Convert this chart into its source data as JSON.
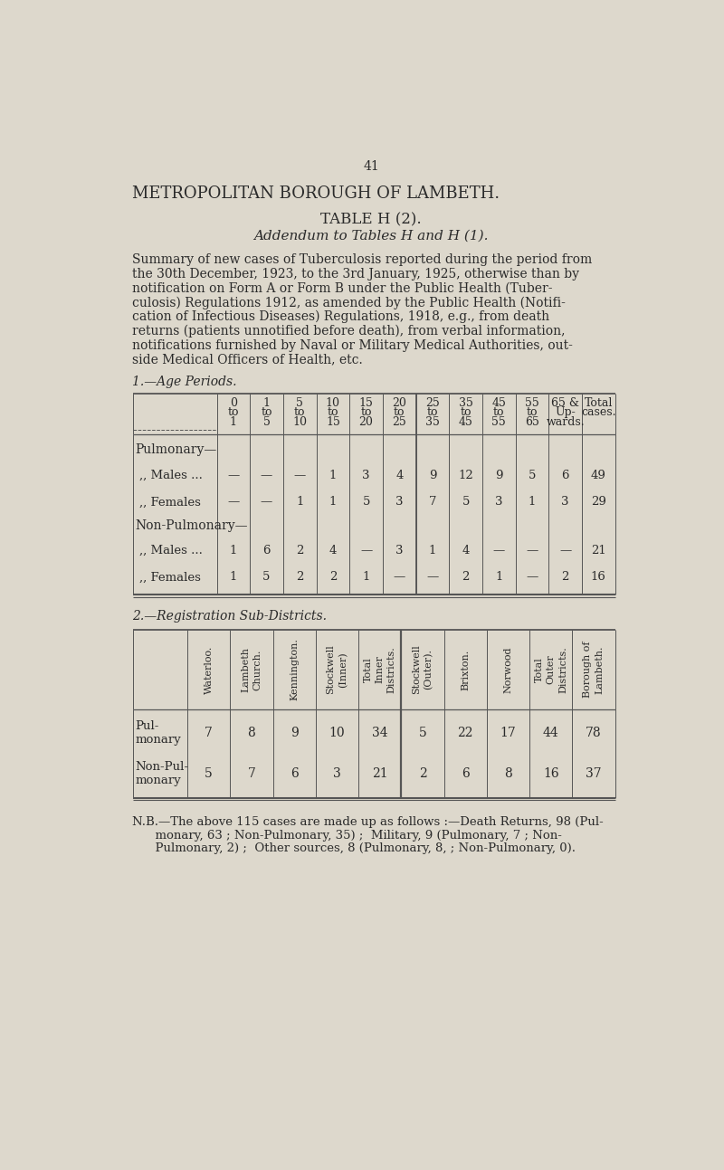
{
  "page_number": "41",
  "title1": "METROPOLITAN BOROUGH OF LAMBETH.",
  "title2": "TABLE H (2).",
  "title3": "Addendum to Tables H and H (1).",
  "body_lines": [
    "Summary of new cases of Tuberculosis reported during the period from",
    "the 30th December, 1923, to the 3rd January, 1925, otherwise than by",
    "notification on Form A or Form B under the Public Health (Tuber-",
    "culosis) Regulations 1912, as amended by the Public Health (Notifi-",
    "cation of Infectious Diseases) Regulations, 1918, e.g., from death",
    "returns (patients unnotified before death), from verbal information,",
    "notifications furnished by Naval or Military Medical Authorities, out-",
    "side Medical Officers of Health, etc."
  ],
  "section1_label": "1.—Age Periods.",
  "age_col_headers_line1": [
    "0",
    "1",
    "5",
    "10",
    "15",
    "20",
    "25",
    "35",
    "45",
    "55",
    "65 &",
    "Total"
  ],
  "age_col_headers_line2": [
    "to",
    "to",
    "to",
    "to",
    "to",
    "to",
    "to",
    "to",
    "to",
    "to",
    "Up-",
    "cases."
  ],
  "age_col_headers_line3": [
    "1",
    "5",
    "10",
    "15",
    "20",
    "25",
    "35",
    "45",
    "55",
    "65",
    "wards.",
    ""
  ],
  "age_row_labels": [
    "Pulmonary—",
    ",, Males ...",
    ",, Females",
    "Non-Pulmonary—",
    ",, Males ...",
    ",, Females"
  ],
  "age_row_values": [
    null,
    [
      "—",
      "—",
      "—",
      "1",
      "3",
      "4",
      "9",
      "12",
      "9",
      "5",
      "6",
      "49"
    ],
    [
      "—",
      "—",
      "1",
      "1",
      "5",
      "3",
      "7",
      "5",
      "3",
      "1",
      "3",
      "29"
    ],
    null,
    [
      "1",
      "6",
      "2",
      "4",
      "—",
      "3",
      "1",
      "4",
      "—",
      "—",
      "—",
      "21"
    ],
    [
      "1",
      "5",
      "2",
      "2",
      "1",
      "—",
      "—",
      "2",
      "1",
      "—",
      "2",
      "16"
    ]
  ],
  "section2_label": "2.—Registration Sub-Districts.",
  "dist_col_headers": [
    "Waterloo.",
    "Lambeth\nChurch.",
    "Kennington.",
    "Stockwell\n(Inner)",
    "Total\nInner\nDistricts.",
    "Stockwell\n(Outer).",
    "Brixton.",
    "Norwood",
    "Total\nOuter\nDistricts.",
    "Borough of\nLambeth."
  ],
  "dist_row_labels": [
    "Pul-\nmonary",
    "Non-Pul-\nmonary"
  ],
  "dist_row_values": [
    [
      "7",
      "8",
      "9",
      "10",
      "34",
      "5",
      "22",
      "17",
      "44",
      "78"
    ],
    [
      "5",
      "7",
      "6",
      "3",
      "21",
      "2",
      "6",
      "8",
      "16",
      "37"
    ]
  ],
  "footnote_lines": [
    "N.B.—The above 115 cases are made up as follows :—Death Returns, 98 (Pul-",
    "      monary, 63 ; Non-Pulmonary, 35) ;  Military, 9 (Pulmonary, 7 ; Non-",
    "      Pulmonary, 2) ;  Other sources, 8 (Pulmonary, 8, ; Non-Pulmonary, 0)."
  ],
  "bg_color": "#ddd8cc",
  "text_color": "#2a2a2a",
  "line_color": "#555555"
}
